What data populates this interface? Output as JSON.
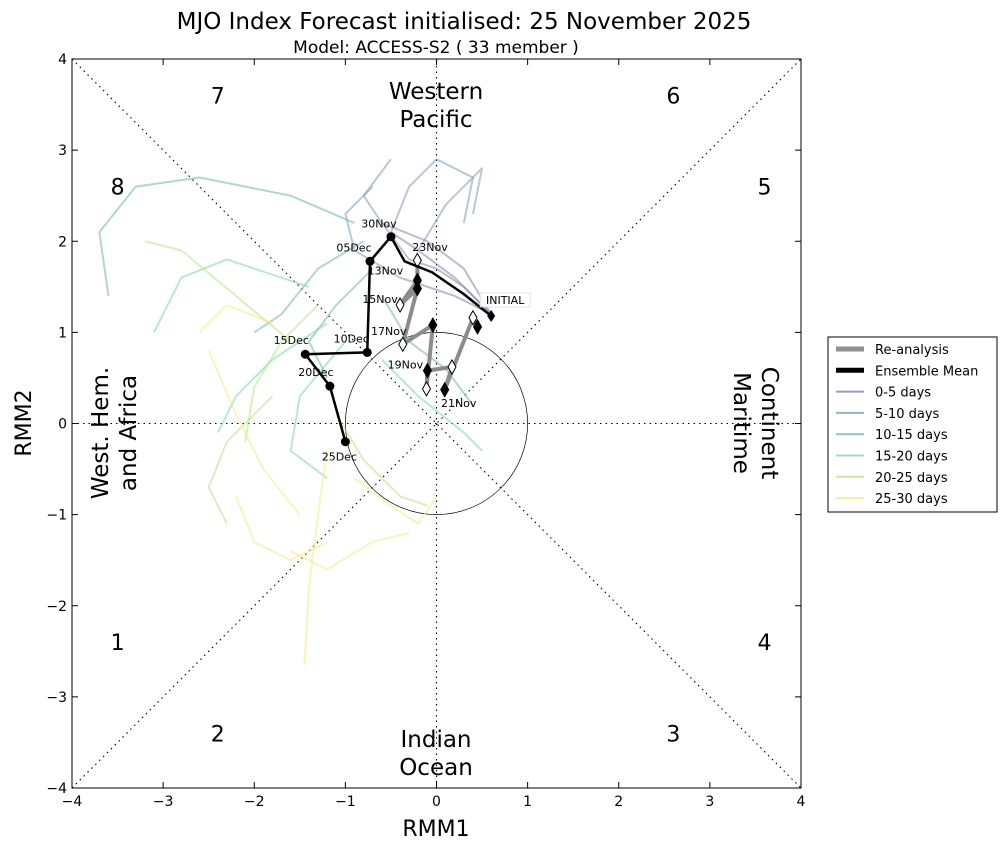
{
  "chart_data": {
    "type": "line",
    "title": "MJO Index Forecast initialised:  25  November 2025",
    "subtitle": "Model: ACCESS-S2 ( 33 member )",
    "xlabel": "RMM1",
    "ylabel": "RMM2",
    "xlim": [
      -4,
      4
    ],
    "ylim": [
      -4,
      4
    ],
    "xticks": [
      -4,
      -3,
      -2,
      -1,
      0,
      1,
      2,
      3,
      4
    ],
    "yticks": [
      -4,
      -3,
      -2,
      -1,
      0,
      1,
      2,
      3,
      4
    ],
    "xtick_labels": [
      "−4",
      "−3",
      "−2",
      "−1",
      "0",
      "1",
      "2",
      "3",
      "4"
    ],
    "ytick_labels": [
      "−4",
      "−3",
      "−2",
      "−1",
      "0",
      "1",
      "2",
      "3",
      "4"
    ],
    "grid": false,
    "unit_circle_radius": 1,
    "phases": [
      {
        "label": "1",
        "x": -3.5,
        "y": -2.4
      },
      {
        "label": "2",
        "x": -2.4,
        "y": -3.4
      },
      {
        "label": "3",
        "x": 2.6,
        "y": -3.4
      },
      {
        "label": "4",
        "x": 3.6,
        "y": -2.4
      },
      {
        "label": "5",
        "x": 3.6,
        "y": 2.6
      },
      {
        "label": "6",
        "x": 2.6,
        "y": 3.6
      },
      {
        "label": "7",
        "x": -2.4,
        "y": 3.6
      },
      {
        "label": "8",
        "x": -3.5,
        "y": 2.6
      }
    ],
    "regions": {
      "top": [
        "Western",
        "Pacific"
      ],
      "bottom": [
        "Indian",
        "Ocean"
      ],
      "left": [
        "West. Hem.",
        "and Africa"
      ],
      "right": [
        "Maritime",
        "Continent"
      ]
    },
    "legend": {
      "placement": "outside-right",
      "entries": [
        {
          "label": "Re-analysis",
          "color": "#909090",
          "style": "thick"
        },
        {
          "label": "Ensemble Mean",
          "color": "#000000",
          "style": "thick"
        },
        {
          "label": "0-5 days",
          "color": "#8a7fa8",
          "style": "thin"
        },
        {
          "label": "5-10 days",
          "color": "#7f9ab5",
          "style": "thin"
        },
        {
          "label": "10-15 days",
          "color": "#6fb5b0",
          "style": "thin"
        },
        {
          "label": "15-20 days",
          "color": "#7fd6a6",
          "style": "thin"
        },
        {
          "label": "20-25 days",
          "color": "#b8e38a",
          "style": "thin"
        },
        {
          "label": "25-30 days",
          "color": "#f5ea83",
          "style": "thin"
        }
      ]
    },
    "reanalysis": {
      "name": "Re-analysis",
      "points": [
        {
          "x": 0.45,
          "y": 1.06,
          "label": ""
        },
        {
          "x": 0.4,
          "y": 1.16,
          "label": ""
        },
        {
          "x": 0.09,
          "y": 0.37,
          "label": "21Nov"
        },
        {
          "x": 0.17,
          "y": 0.62,
          "label": ""
        },
        {
          "x": -0.1,
          "y": 0.58,
          "label": "19Nov"
        },
        {
          "x": -0.11,
          "y": 0.38,
          "label": ""
        },
        {
          "x": -0.04,
          "y": 1.08,
          "label": ""
        },
        {
          "x": -0.37,
          "y": 0.87,
          "label": "17Nov"
        },
        {
          "x": -0.21,
          "y": 1.48,
          "label": ""
        },
        {
          "x": -0.4,
          "y": 1.3,
          "label": "15Nov"
        },
        {
          "x": -0.21,
          "y": 1.57,
          "label": ""
        },
        {
          "x": -0.21,
          "y": 1.79,
          "label": "13Nov"
        }
      ]
    },
    "ensemble_mean": {
      "name": "Ensemble Mean",
      "points": [
        {
          "x": 0.6,
          "y": 1.18,
          "label": "INITIAL"
        },
        {
          "x": 0.3,
          "y": 1.42,
          "label": ""
        },
        {
          "x": -0.05,
          "y": 1.66,
          "label": ""
        },
        {
          "x": -0.35,
          "y": 1.78,
          "label": ""
        },
        {
          "x": -0.5,
          "y": 2.05,
          "label": "30Nov"
        },
        {
          "x": -0.73,
          "y": 1.78,
          "label": "05Dec"
        },
        {
          "x": -0.76,
          "y": 0.78,
          "label": "10Dec"
        },
        {
          "x": -1.44,
          "y": 0.76,
          "label": "15Dec"
        },
        {
          "x": -1.17,
          "y": 0.41,
          "label": "20Dec"
        },
        {
          "x": -1.0,
          "y": -0.2,
          "label": "25Dec"
        }
      ],
      "initial_label": "INITIAL",
      "reanalysis_end_label": "23Nov"
    },
    "members_note": "33 ensemble members, coloured by forecast lead-time band",
    "member_series": [
      {
        "band": "0-5 days",
        "x": [
          0.6,
          0.2,
          -0.2,
          -0.5
        ],
        "y": [
          1.2,
          1.6,
          1.9,
          2.1
        ]
      },
      {
        "band": "0-5 days",
        "x": [
          0.6,
          0.3,
          0.0,
          -0.3
        ],
        "y": [
          1.2,
          1.5,
          1.7,
          1.8
        ]
      },
      {
        "band": "0-5 days",
        "x": [
          0.6,
          0.2,
          -0.1,
          -0.4
        ],
        "y": [
          1.2,
          1.4,
          1.5,
          1.6
        ]
      },
      {
        "band": "0-5 days",
        "x": [
          0.6,
          0.3,
          -0.1,
          -0.6
        ],
        "y": [
          1.2,
          1.7,
          2.0,
          2.2
        ]
      },
      {
        "band": "5-10 days",
        "x": [
          -0.5,
          -0.3,
          0.0,
          0.4,
          0.3
        ],
        "y": [
          2.1,
          2.6,
          2.9,
          2.7,
          2.2
        ]
      },
      {
        "band": "5-10 days",
        "x": [
          -0.3,
          -0.6,
          -0.8,
          -0.5
        ],
        "y": [
          1.8,
          2.2,
          2.5,
          2.9
        ]
      },
      {
        "band": "5-10 days",
        "x": [
          -0.4,
          -0.9,
          -1.0,
          -0.7
        ],
        "y": [
          1.6,
          1.9,
          2.3,
          2.6
        ]
      },
      {
        "band": "5-10 days",
        "x": [
          -0.2,
          0.1,
          0.5,
          0.4
        ],
        "y": [
          1.9,
          2.4,
          2.8,
          2.3
        ]
      },
      {
        "band": "10-15 days",
        "x": [
          -0.8,
          -1.3,
          -1.7,
          -2.0
        ],
        "y": [
          2.0,
          1.7,
          1.2,
          1.0
        ]
      },
      {
        "band": "10-15 days",
        "x": [
          -0.7,
          -1.1,
          -1.4,
          -1.2
        ],
        "y": [
          1.7,
          1.3,
          0.9,
          0.5
        ]
      },
      {
        "band": "10-15 days",
        "x": [
          -0.9,
          -1.6,
          -2.6,
          -3.3,
          -3.7,
          -3.6
        ],
        "y": [
          2.2,
          2.5,
          2.7,
          2.6,
          2.1,
          1.4
        ]
      },
      {
        "band": "10-15 days",
        "x": [
          -0.6,
          -0.3,
          0.1,
          0.4
        ],
        "y": [
          1.4,
          0.9,
          0.6,
          0.2
        ]
      },
      {
        "band": "15-20 days",
        "x": [
          -1.2,
          -1.8,
          -2.2,
          -2.4
        ],
        "y": [
          1.1,
          0.7,
          0.3,
          -0.1
        ]
      },
      {
        "band": "15-20 days",
        "x": [
          -1.0,
          -1.5,
          -1.6,
          -1.2
        ],
        "y": [
          0.9,
          0.3,
          -0.3,
          -0.6
        ]
      },
      {
        "band": "15-20 days",
        "x": [
          -1.4,
          -2.3,
          -2.8,
          -3.1
        ],
        "y": [
          1.5,
          1.8,
          1.6,
          1.0
        ]
      },
      {
        "band": "15-20 days",
        "x": [
          -0.6,
          -0.2,
          0.3,
          0.5
        ],
        "y": [
          0.7,
          0.3,
          -0.1,
          -0.3
        ]
      },
      {
        "band": "20-25 days",
        "x": [
          -1.6,
          -2.2,
          -2.8,
          -3.2
        ],
        "y": [
          0.9,
          1.4,
          1.9,
          2.0
        ]
      },
      {
        "band": "20-25 days",
        "x": [
          -1.1,
          -0.8,
          -0.4,
          -0.1
        ],
        "y": [
          0.1,
          -0.4,
          -0.8,
          -0.9
        ]
      },
      {
        "band": "20-25 days",
        "x": [
          -1.8,
          -2.3,
          -2.5,
          -2.3
        ],
        "y": [
          0.3,
          -0.2,
          -0.7,
          -1.1
        ]
      },
      {
        "band": "20-25 days",
        "x": [
          -1.3,
          -1.7,
          -2.0,
          -2.1
        ],
        "y": [
          1.3,
          0.9,
          0.4,
          -0.2
        ]
      },
      {
        "band": "25-30 days",
        "x": [
          -1.2,
          -1.3,
          -1.4,
          -1.45
        ],
        "y": [
          -0.3,
          -1.0,
          -1.8,
          -2.65
        ]
      },
      {
        "band": "25-30 days",
        "x": [
          -2.2,
          -2.0,
          -1.6,
          -1.2
        ],
        "y": [
          -0.8,
          -1.3,
          -1.5,
          -1.3
        ]
      },
      {
        "band": "25-30 days",
        "x": [
          -0.9,
          -0.5,
          -0.2,
          0.0
        ],
        "y": [
          -0.6,
          -0.9,
          -1.1,
          -0.8
        ]
      },
      {
        "band": "25-30 days",
        "x": [
          -2.5,
          -2.2,
          -1.9,
          -1.5
        ],
        "y": [
          0.8,
          0.1,
          -0.5,
          -1.0
        ]
      },
      {
        "band": "25-30 days",
        "x": [
          -1.6,
          -1.2,
          -0.7,
          -0.3
        ],
        "y": [
          -1.4,
          -1.6,
          -1.3,
          -1.2
        ]
      },
      {
        "band": "25-30 days",
        "x": [
          -2.6,
          -2.3,
          -1.8
        ],
        "y": [
          1.0,
          1.3,
          1.1
        ]
      }
    ]
  }
}
